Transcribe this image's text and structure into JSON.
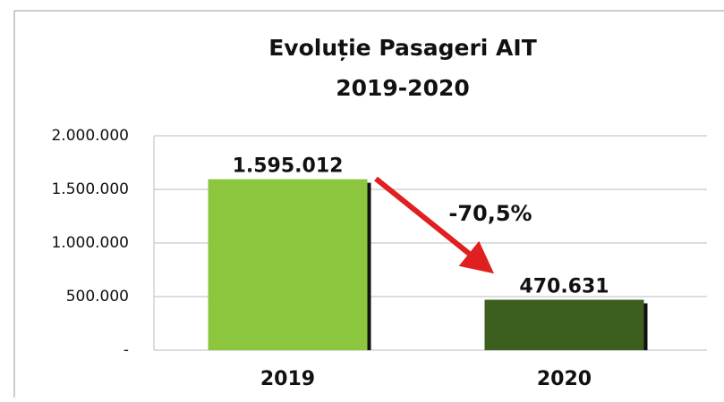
{
  "chart_data": {
    "type": "bar",
    "title": "Evoluție Pasageri AIT",
    "subtitle": "2019-2020",
    "categories": [
      "2019",
      "2020"
    ],
    "values": [
      1595012,
      470631
    ],
    "value_labels": [
      "1.595.012",
      "470.631"
    ],
    "colors": [
      "#8cc63e",
      "#3c5f1f"
    ],
    "annotation": "-70,5%",
    "ylim": [
      0,
      2000000
    ],
    "yticks": [
      {
        "value": 0,
        "label": "-"
      },
      {
        "value": 500000,
        "label": "500.000"
      },
      {
        "value": 1000000,
        "label": "1.000.000"
      },
      {
        "value": 1500000,
        "label": "1.500.000"
      },
      {
        "value": 2000000,
        "label": "2.000.000"
      }
    ],
    "grid": true
  }
}
